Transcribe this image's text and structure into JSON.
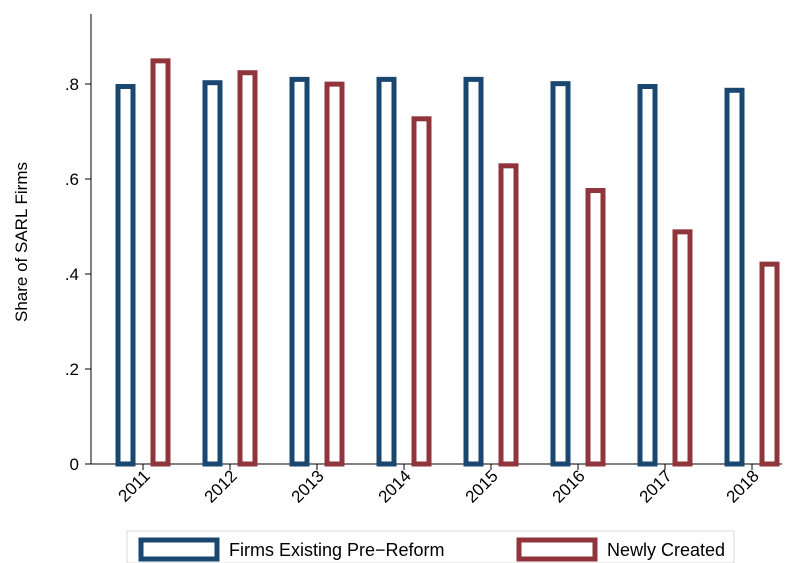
{
  "chart_data": {
    "type": "bar",
    "categories": [
      "2011",
      "2012",
      "2013",
      "2014",
      "2015",
      "2016",
      "2017",
      "2018"
    ],
    "series": [
      {
        "name": "Firms Existing Pre−Reform",
        "color": "#1a476f",
        "values": [
          0.8,
          0.808,
          0.815,
          0.815,
          0.815,
          0.806,
          0.8,
          0.792
        ]
      },
      {
        "name": "Newly Created",
        "color": "#90353b",
        "values": [
          0.854,
          0.829,
          0.805,
          0.732,
          0.633,
          0.581,
          0.494,
          0.426
        ]
      }
    ],
    "title": "",
    "xlabel": "",
    "ylabel": "Share of SARL Firms",
    "ylim": [
      0,
      0.95
    ],
    "yticks": [
      0,
      0.2,
      0.4,
      0.6,
      0.8
    ],
    "ytick_labels": [
      "0",
      ".2",
      ".4",
      ".6",
      ".8"
    ],
    "grid": false,
    "legend_position": "bottom",
    "bar_style": "outline"
  }
}
